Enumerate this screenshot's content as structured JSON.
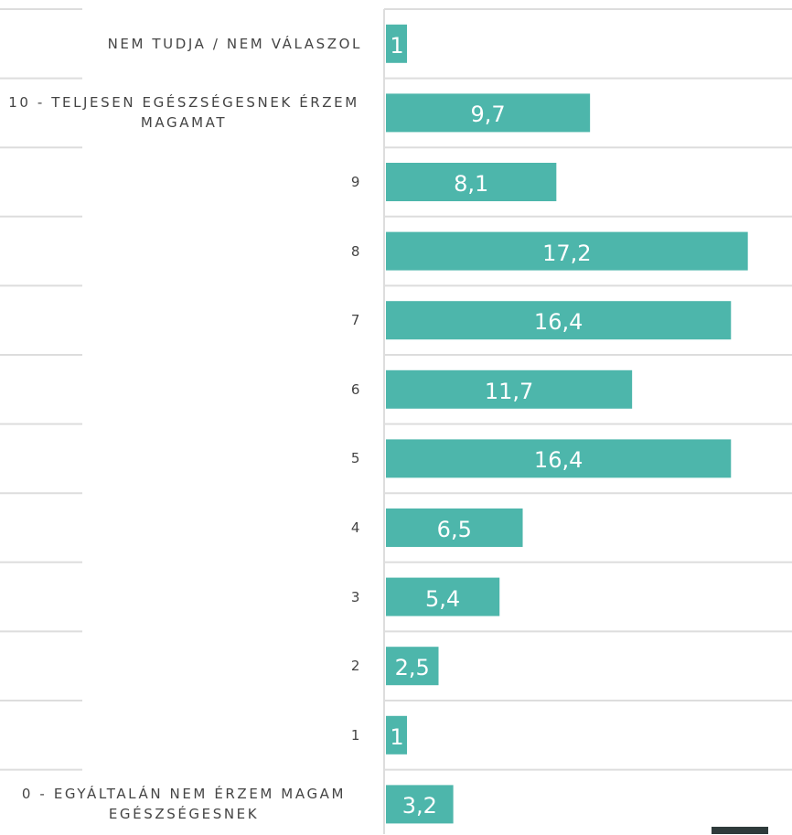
{
  "chart_data": {
    "type": "bar",
    "orientation": "horizontal",
    "categories": [
      "NEM TUDJA / NEM VÁLASZOL",
      "10 - TELJESEN EGÉSZSÉGESNEK ÉRZEM MAGAMAT",
      "9",
      "8",
      "7",
      "6",
      "5",
      "4",
      "3",
      "2",
      "1",
      "0 - EGYÁLTALÁN NEM ÉRZEM MAGAM EGÉSZSÉGESNEK"
    ],
    "values": [
      1,
      9.7,
      8.1,
      17.2,
      16.4,
      11.7,
      16.4,
      6.5,
      5.4,
      2.5,
      1,
      3.2
    ],
    "value_labels": [
      "1",
      "9,7",
      "8,1",
      "17,2",
      "16,4",
      "11,7",
      "16,4",
      "6,5",
      "5,4",
      "2,5",
      "1",
      "3,2"
    ],
    "color": "#4db6ab",
    "xlim": [
      0,
      19.3
    ],
    "grid": true
  }
}
